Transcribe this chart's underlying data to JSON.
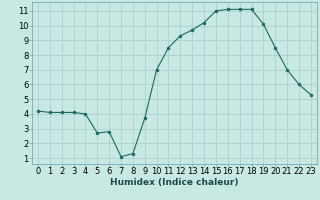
{
  "x": [
    0,
    1,
    2,
    3,
    4,
    5,
    6,
    7,
    8,
    9,
    10,
    11,
    12,
    13,
    14,
    15,
    16,
    17,
    18,
    19,
    20,
    21,
    22,
    23
  ],
  "y": [
    4.2,
    4.1,
    4.1,
    4.1,
    4.0,
    2.7,
    2.8,
    1.1,
    1.3,
    3.7,
    7.0,
    8.5,
    9.3,
    9.7,
    10.2,
    11.0,
    11.1,
    11.1,
    11.1,
    10.1,
    8.5,
    7.0,
    6.0,
    5.3
  ],
  "line_color": "#1a6b5a",
  "marker": "o",
  "marker_size": 2.0,
  "bg_color": "#c8e8e4",
  "grid_color": "#a8cccc",
  "xlabel": "Humidex (Indice chaleur)",
  "xlabel_fontsize": 6.5,
  "tick_fontsize": 6,
  "ylim": [
    0.6,
    11.6
  ],
  "xlim": [
    -0.5,
    23.5
  ],
  "yticks": [
    1,
    2,
    3,
    4,
    5,
    6,
    7,
    8,
    9,
    10,
    11
  ],
  "xticks": [
    0,
    1,
    2,
    3,
    4,
    5,
    6,
    7,
    8,
    9,
    10,
    11,
    12,
    13,
    14,
    15,
    16,
    17,
    18,
    19,
    20,
    21,
    22,
    23
  ]
}
